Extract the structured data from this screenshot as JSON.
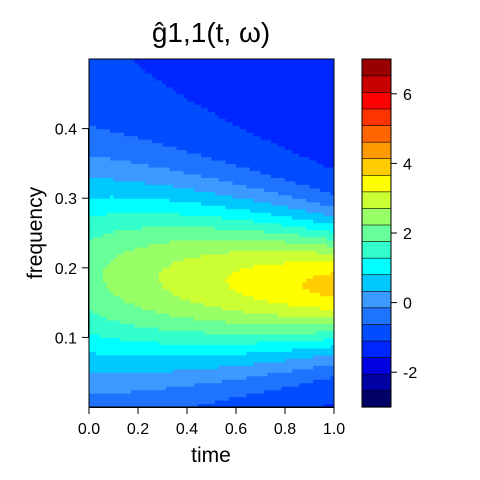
{
  "chart_data": {
    "type": "heatmap",
    "title": "ĝ1,1(t, ω)",
    "xlabel": "time",
    "ylabel": "frequency",
    "xlim": [
      0.0,
      1.0
    ],
    "ylim": [
      0.0,
      0.5
    ],
    "x_ticks": [
      "0.0",
      "0.2",
      "0.4",
      "0.6",
      "0.8",
      "1.0"
    ],
    "y_ticks": [
      "0.1",
      "0.2",
      "0.3",
      "0.4"
    ],
    "colorbar": {
      "min": -3,
      "max": 7,
      "step": 0.5,
      "ticks": [
        "-2",
        "0",
        "2",
        "4",
        "6"
      ],
      "colors": [
        "#000066",
        "#0000A3",
        "#0000E0",
        "#0026FF",
        "#004CFF",
        "#1E73FF",
        "#3B99FF",
        "#00C8FF",
        "#00FFFF",
        "#33FFCC",
        "#66FF99",
        "#99FF66",
        "#CCFF33",
        "#FFFF00",
        "#FFCC00",
        "#FF9900",
        "#FF6600",
        "#FF3300",
        "#FF0000",
        "#C80000",
        "#990000"
      ]
    },
    "model": {
      "description_of_surface": "ridge in frequency around 0.17-0.19 that sharpens and strengthens with time",
      "ridge_center_start": 0.19,
      "ridge_center_end": 0.175,
      "ridge_peak_start": 2.3,
      "ridge_peak_end": 4.2,
      "ridge_width_start": 0.11,
      "ridge_width_end": 0.065,
      "background_start": -1.0,
      "background_end": -1.2
    }
  }
}
